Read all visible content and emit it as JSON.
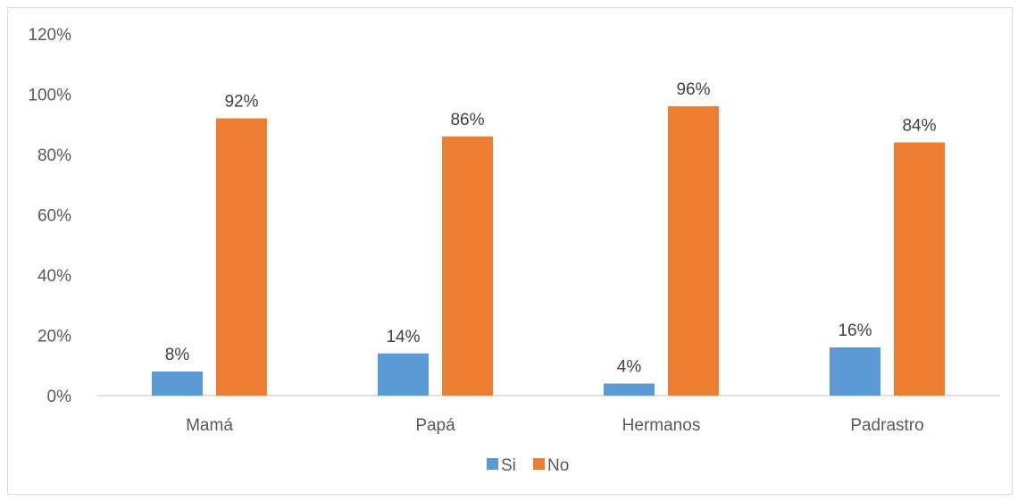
{
  "chart_data": {
    "type": "bar",
    "categories": [
      "Mamá",
      "Papá",
      "Hermanos",
      "Padrastro"
    ],
    "series": [
      {
        "name": "Si",
        "values": [
          8,
          14,
          4,
          16
        ],
        "labels": [
          "8%",
          "14%",
          "4%",
          "16%"
        ],
        "color": "#5b9bd5"
      },
      {
        "name": "No",
        "values": [
          92,
          86,
          96,
          84
        ],
        "labels": [
          "92%",
          "86%",
          "96%",
          "84%"
        ],
        "color": "#ed7d31"
      }
    ],
    "ylim": [
      0,
      120
    ],
    "yticks": [
      0,
      20,
      40,
      60,
      80,
      100,
      120
    ],
    "ytick_labels": [
      "0%",
      "20%",
      "40%",
      "60%",
      "80%",
      "100%",
      "120%"
    ],
    "grid": false,
    "legend_position": "bottom"
  }
}
